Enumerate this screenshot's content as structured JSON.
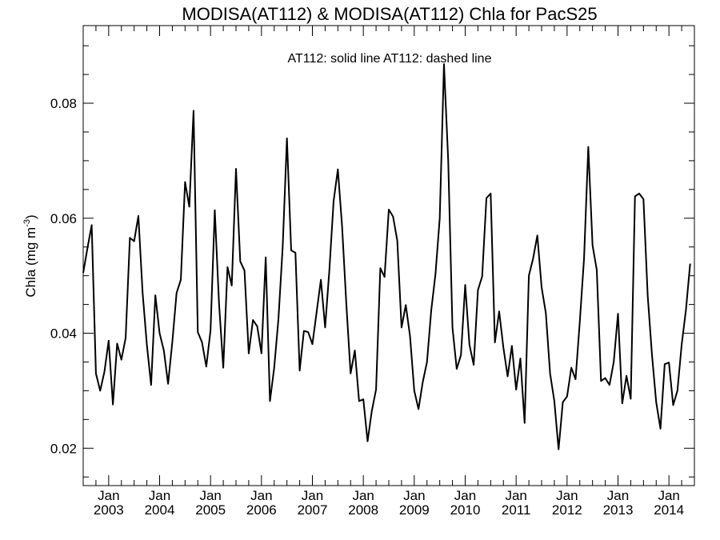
{
  "chart_data": {
    "type": "line",
    "title": "MODISA(AT112) & MODISA(AT112)  Chla for PacS25",
    "ylabel_main": "Chla (mg m",
    "ylabel_sup": "-3",
    "ylabel_close": ")",
    "annotation": "AT112: solid line   AT112: dashed line",
    "ylim": [
      0.0135,
      0.0935
    ],
    "yticks": [
      "0.02",
      "0.04",
      "0.06",
      "0.08"
    ],
    "ytick_values": [
      0.02,
      0.04,
      0.06,
      0.08
    ],
    "xlim": [
      "2002-07-01",
      "2014-07-01"
    ],
    "x_ticks": [
      {
        "month": "Jan",
        "year": "2003",
        "date": "2003-01-01"
      },
      {
        "month": "Jan",
        "year": "2004",
        "date": "2004-01-01"
      },
      {
        "month": "Jan",
        "year": "2005",
        "date": "2005-01-01"
      },
      {
        "month": "Jan",
        "year": "2006",
        "date": "2006-01-01"
      },
      {
        "month": "Jan",
        "year": "2007",
        "date": "2007-01-01"
      },
      {
        "month": "Jan",
        "year": "2008",
        "date": "2008-01-01"
      },
      {
        "month": "Jan",
        "year": "2009",
        "date": "2009-01-01"
      },
      {
        "month": "Jan",
        "year": "2010",
        "date": "2010-01-01"
      },
      {
        "month": "Jan",
        "year": "2011",
        "date": "2011-01-01"
      },
      {
        "month": "Jan",
        "year": "2012",
        "date": "2012-01-01"
      },
      {
        "month": "Jan",
        "year": "2013",
        "date": "2013-01-01"
      },
      {
        "month": "Jan",
        "year": "2014",
        "date": "2014-01-01"
      }
    ],
    "series": [
      {
        "style": "solid",
        "color": "#000000",
        "points": [
          [
            "2002-07",
            0.0505
          ],
          [
            "2002-08",
            0.0548
          ],
          [
            "2002-09",
            0.0588
          ],
          [
            "2002-10",
            0.033
          ],
          [
            "2002-11",
            0.03
          ],
          [
            "2002-12",
            0.0333
          ],
          [
            "2003-01",
            0.0387
          ],
          [
            "2003-02",
            0.0276
          ],
          [
            "2003-03",
            0.0382
          ],
          [
            "2003-04",
            0.0354
          ],
          [
            "2003-05",
            0.0392
          ],
          [
            "2003-06",
            0.0566
          ],
          [
            "2003-07",
            0.056
          ],
          [
            "2003-08",
            0.0604
          ],
          [
            "2003-09",
            0.047
          ],
          [
            "2003-10",
            0.038
          ],
          [
            "2003-11",
            0.031
          ],
          [
            "2003-12",
            0.0466
          ],
          [
            "2004-01",
            0.04
          ],
          [
            "2004-02",
            0.037
          ],
          [
            "2004-03",
            0.0312
          ],
          [
            "2004-04",
            0.0385
          ],
          [
            "2004-05",
            0.047
          ],
          [
            "2004-06",
            0.0493
          ],
          [
            "2004-07",
            0.0663
          ],
          [
            "2004-08",
            0.062
          ],
          [
            "2004-09",
            0.0787
          ],
          [
            "2004-10",
            0.0402
          ],
          [
            "2004-11",
            0.0384
          ],
          [
            "2004-12",
            0.0342
          ],
          [
            "2005-01",
            0.0405
          ],
          [
            "2005-02",
            0.0614
          ],
          [
            "2005-03",
            0.0452
          ],
          [
            "2005-04",
            0.034
          ],
          [
            "2005-05",
            0.0515
          ],
          [
            "2005-06",
            0.0483
          ],
          [
            "2005-07",
            0.0686
          ],
          [
            "2005-08",
            0.0525
          ],
          [
            "2005-09",
            0.0509
          ],
          [
            "2005-10",
            0.0365
          ],
          [
            "2005-11",
            0.0423
          ],
          [
            "2005-12",
            0.0412
          ],
          [
            "2006-01",
            0.0365
          ],
          [
            "2006-02",
            0.0532
          ],
          [
            "2006-03",
            0.0282
          ],
          [
            "2006-04",
            0.034
          ],
          [
            "2006-05",
            0.0425
          ],
          [
            "2006-06",
            0.055
          ],
          [
            "2006-07",
            0.0739
          ],
          [
            "2006-08",
            0.0544
          ],
          [
            "2006-09",
            0.054
          ],
          [
            "2006-10",
            0.0335
          ],
          [
            "2006-11",
            0.0404
          ],
          [
            "2006-12",
            0.0402
          ],
          [
            "2007-01",
            0.0381
          ],
          [
            "2007-02",
            0.0437
          ],
          [
            "2007-03",
            0.0493
          ],
          [
            "2007-04",
            0.041
          ],
          [
            "2007-05",
            0.051
          ],
          [
            "2007-06",
            0.063
          ],
          [
            "2007-07",
            0.0685
          ],
          [
            "2007-08",
            0.0585
          ],
          [
            "2007-09",
            0.045
          ],
          [
            "2007-10",
            0.033
          ],
          [
            "2007-11",
            0.037
          ],
          [
            "2007-12",
            0.0282
          ],
          [
            "2008-01",
            0.0285
          ],
          [
            "2008-02",
            0.0212
          ],
          [
            "2008-03",
            0.0265
          ],
          [
            "2008-04",
            0.0302
          ],
          [
            "2008-05",
            0.0513
          ],
          [
            "2008-06",
            0.0498
          ],
          [
            "2008-07",
            0.0615
          ],
          [
            "2008-08",
            0.0603
          ],
          [
            "2008-09",
            0.0561
          ],
          [
            "2008-10",
            0.041
          ],
          [
            "2008-11",
            0.0449
          ],
          [
            "2008-12",
            0.0395
          ],
          [
            "2009-01",
            0.03
          ],
          [
            "2009-02",
            0.0268
          ],
          [
            "2009-03",
            0.0315
          ],
          [
            "2009-04",
            0.035
          ],
          [
            "2009-05",
            0.044
          ],
          [
            "2009-06",
            0.0503
          ],
          [
            "2009-07",
            0.06
          ],
          [
            "2009-08",
            0.0868
          ],
          [
            "2009-09",
            0.07
          ],
          [
            "2009-10",
            0.041
          ],
          [
            "2009-11",
            0.0338
          ],
          [
            "2009-12",
            0.0362
          ],
          [
            "2010-01",
            0.0484
          ],
          [
            "2010-02",
            0.038
          ],
          [
            "2010-03",
            0.0345
          ],
          [
            "2010-04",
            0.0475
          ],
          [
            "2010-05",
            0.0499
          ],
          [
            "2010-06",
            0.0635
          ],
          [
            "2010-07",
            0.0643
          ],
          [
            "2010-08",
            0.0384
          ],
          [
            "2010-09",
            0.0438
          ],
          [
            "2010-10",
            0.0375
          ],
          [
            "2010-11",
            0.0325
          ],
          [
            "2010-12",
            0.0378
          ],
          [
            "2011-01",
            0.0302
          ],
          [
            "2011-02",
            0.0356
          ],
          [
            "2011-03",
            0.0244
          ],
          [
            "2011-04",
            0.05
          ],
          [
            "2011-05",
            0.053
          ],
          [
            "2011-06",
            0.057
          ],
          [
            "2011-07",
            0.048
          ],
          [
            "2011-08",
            0.0435
          ],
          [
            "2011-09",
            0.033
          ],
          [
            "2011-10",
            0.0282
          ],
          [
            "2011-11",
            0.0198
          ],
          [
            "2011-12",
            0.028
          ],
          [
            "2012-01",
            0.029
          ],
          [
            "2012-02",
            0.034
          ],
          [
            "2012-03",
            0.032
          ],
          [
            "2012-04",
            0.042
          ],
          [
            "2012-05",
            0.053
          ],
          [
            "2012-06",
            0.0724
          ],
          [
            "2012-07",
            0.0553
          ],
          [
            "2012-08",
            0.051
          ],
          [
            "2012-09",
            0.0317
          ],
          [
            "2012-10",
            0.0322
          ],
          [
            "2012-11",
            0.031
          ],
          [
            "2012-12",
            0.035
          ],
          [
            "2013-01",
            0.0434
          ],
          [
            "2013-02",
            0.0278
          ],
          [
            "2013-03",
            0.0326
          ],
          [
            "2013-04",
            0.0286
          ],
          [
            "2013-05",
            0.0638
          ],
          [
            "2013-06",
            0.0643
          ],
          [
            "2013-07",
            0.0633
          ],
          [
            "2013-08",
            0.0465
          ],
          [
            "2013-09",
            0.0363
          ],
          [
            "2013-10",
            0.028
          ],
          [
            "2013-11",
            0.0234
          ],
          [
            "2013-12",
            0.0346
          ],
          [
            "2014-01",
            0.0349
          ],
          [
            "2014-02",
            0.0275
          ],
          [
            "2014-03",
            0.03
          ],
          [
            "2014-04",
            0.038
          ],
          [
            "2014-05",
            0.044
          ],
          [
            "2014-06",
            0.0521
          ]
        ]
      }
    ]
  }
}
